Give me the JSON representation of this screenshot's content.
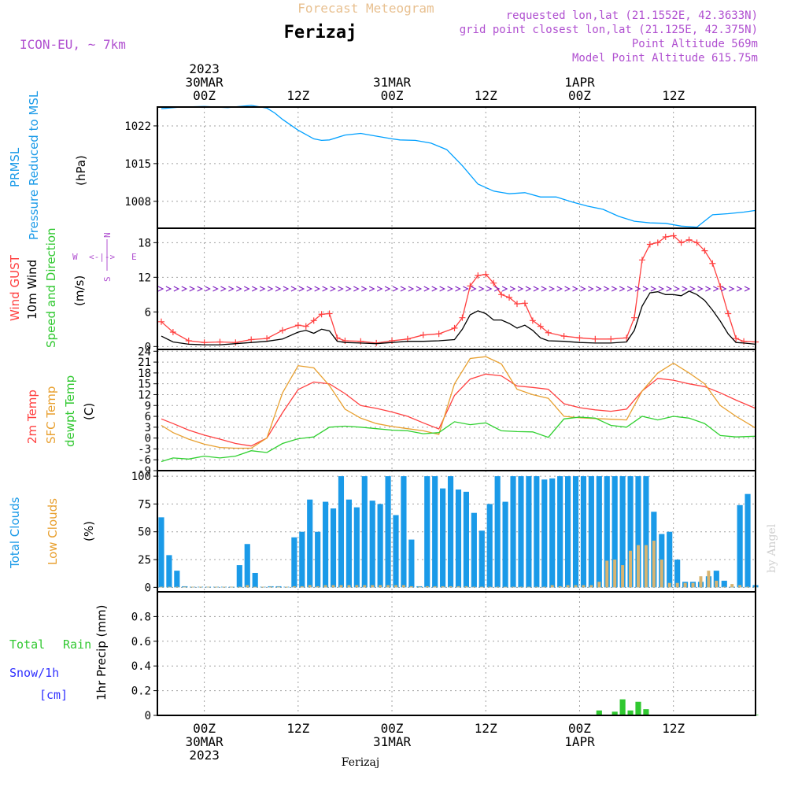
{
  "header": {
    "product": "Forecast Meteogram",
    "location": "Ferizaj",
    "model": "ICON-EU, ~ 7km",
    "requested": "requested lon,lat (21.1552E, 42.3633N)",
    "grid": "grid point closest lon,lat (21.125E, 42.375N)",
    "altitude": "Point Altitude 569m",
    "model_altitude": "Model Point Altitude 615.75m",
    "footer": "Ferizaj",
    "watermark": "by Angel"
  },
  "time_axis": {
    "top": [
      {
        "t": 0,
        "lines": [
          "2023",
          "30MAR",
          "00Z"
        ]
      },
      {
        "t": 12,
        "lines": [
          "12Z"
        ]
      },
      {
        "t": 24,
        "lines": [
          "31MAR",
          "00Z"
        ]
      },
      {
        "t": 36,
        "lines": [
          "12Z"
        ]
      },
      {
        "t": 48,
        "lines": [
          "1APR",
          "00Z"
        ]
      },
      {
        "t": 60,
        "lines": [
          "12Z"
        ]
      }
    ],
    "bottom": [
      {
        "t": 0,
        "lines": [
          "00Z",
          "30MAR",
          "2023"
        ]
      },
      {
        "t": 12,
        "lines": [
          "12Z"
        ]
      },
      {
        "t": 24,
        "lines": [
          "00Z",
          "31MAR"
        ]
      },
      {
        "t": 36,
        "lines": [
          "12Z"
        ]
      },
      {
        "t": 48,
        "lines": [
          "00Z",
          "1APR"
        ]
      },
      {
        "t": 60,
        "lines": [
          "12Z"
        ]
      }
    ]
  },
  "labels": {
    "p1": [
      "PRMSL",
      "Pressure Reduced to MSL",
      "(hPa)"
    ],
    "p2": [
      "Wind GUST",
      "10m Wind",
      "Speed and Direction",
      "(m/s)"
    ],
    "compass": {
      "n": "N",
      "s": "S",
      "w": "W",
      "e": "E",
      "we": "<-|->"
    },
    "p3": [
      "2m Temp",
      "SFC Temp",
      "dewpt Temp",
      "(C)"
    ],
    "p4": [
      "Total Clouds",
      "Low Clouds",
      "(%)"
    ],
    "p5": [
      "Total",
      "Rain",
      "Snow/1h",
      "[cm]",
      "1hr Precip (mm)"
    ]
  },
  "chart_data": [
    {
      "type": "line",
      "title": "PRMSL Pressure Reduced to MSL",
      "ylabel": "(hPa)",
      "ylim": [
        1003,
        1025.5
      ],
      "yticks": [
        1008,
        1015,
        1022
      ],
      "x": [
        -5.5,
        -3,
        0,
        3,
        6,
        8,
        9,
        10,
        12,
        14,
        15,
        16,
        18,
        20,
        22,
        24,
        25,
        27,
        29,
        31,
        33,
        35,
        37,
        39,
        41,
        43,
        45,
        47,
        49,
        51,
        53,
        55,
        57,
        59,
        61,
        63,
        65,
        67,
        69,
        70.5
      ],
      "series": [
        {
          "name": "PRMSL",
          "color": "#00a0ff",
          "values": [
            1025.2,
            1025.5,
            1025.6,
            1025.4,
            1025.8,
            1025.3,
            1024.4,
            1023.2,
            1021.2,
            1019.6,
            1019.3,
            1019.4,
            1020.3,
            1020.6,
            1020.1,
            1019.6,
            1019.4,
            1019.3,
            1018.8,
            1017.6,
            1014.6,
            1011.2,
            1009.9,
            1009.4,
            1009.6,
            1008.8,
            1008.8,
            1007.9,
            1007.1,
            1006.5,
            1005.2,
            1004.3,
            1004.0,
            1003.9,
            1003.4,
            1003.2,
            1005.5,
            1005.7,
            1006.0,
            1006.3
          ]
        }
      ]
    },
    {
      "type": "line",
      "title": "Wind GUST / 10m Wind Speed and Direction",
      "ylabel": "(m/s)",
      "ylim": [
        -0.5,
        20.5
      ],
      "yticks": [
        0,
        6,
        12,
        18
      ],
      "x": [
        -5.5,
        -4,
        -2,
        0,
        2,
        4,
        6,
        8,
        10,
        12,
        13,
        14,
        15,
        16,
        17,
        18,
        20,
        22,
        24,
        26,
        28,
        30,
        32,
        33,
        34,
        35,
        36,
        37,
        38,
        39,
        40,
        41,
        42,
        43,
        44,
        46,
        48,
        50,
        52,
        54,
        55,
        56,
        57,
        58,
        59,
        60,
        61,
        62,
        63,
        64,
        65,
        66,
        67,
        68,
        69,
        70.5
      ],
      "series": [
        {
          "name": "Wind GUST",
          "color": "#ff4040",
          "values": [
            4.3,
            2.5,
            1.0,
            0.7,
            0.8,
            0.7,
            1.2,
            1.4,
            2.8,
            3.7,
            3.5,
            4.5,
            5.6,
            5.7,
            1.5,
            1.0,
            0.9,
            0.6,
            1.0,
            1.3,
            2.0,
            2.2,
            3.2,
            5.0,
            10.5,
            12.3,
            12.5,
            11.0,
            9.0,
            8.5,
            7.4,
            7.5,
            4.5,
            3.5,
            2.4,
            1.8,
            1.5,
            1.3,
            1.3,
            1.5,
            5.0,
            15.0,
            17.7,
            18.0,
            19.0,
            19.2,
            18.0,
            18.5,
            18.0,
            16.6,
            14.4,
            10.4,
            5.7,
            1.4,
            0.9,
            0.8
          ]
        },
        {
          "name": "10m Wind",
          "color": "#000000",
          "values": [
            1.8,
            0.8,
            0.4,
            0.3,
            0.3,
            0.5,
            0.7,
            0.9,
            1.3,
            2.5,
            2.8,
            2.3,
            3.0,
            2.7,
            0.9,
            0.7,
            0.6,
            0.5,
            0.7,
            0.9,
            0.9,
            1.0,
            1.2,
            3.0,
            5.5,
            6.2,
            5.7,
            4.6,
            4.6,
            4.0,
            3.2,
            3.7,
            2.8,
            1.5,
            1.0,
            0.9,
            0.7,
            0.6,
            0.6,
            0.8,
            2.8,
            7.0,
            9.3,
            9.5,
            9.0,
            9.0,
            8.8,
            9.6,
            9.0,
            8.0,
            6.3,
            4.4,
            2.2,
            0.7,
            0.6,
            0.4
          ]
        }
      ],
      "direction_arrows_y": 10
    },
    {
      "type": "line",
      "title": "Temperature",
      "ylabel": "(C)",
      "ylim": [
        -9,
        24.5
      ],
      "yticks": [
        -9,
        -6,
        -3,
        0,
        3,
        6,
        9,
        12,
        15,
        18,
        21,
        24
      ],
      "x": [
        -5.5,
        -4,
        -2,
        0,
        2,
        4,
        6,
        8,
        10,
        12,
        14,
        16,
        18,
        20,
        22,
        24,
        26,
        28,
        30,
        32,
        34,
        36,
        38,
        40,
        42,
        44,
        46,
        48,
        50,
        52,
        54,
        56,
        58,
        60,
        62,
        64,
        66,
        68,
        70.5
      ],
      "series": [
        {
          "name": "2m Temp",
          "color": "#ff4040",
          "values": [
            5.3,
            4.0,
            2.2,
            0.8,
            -0.3,
            -1.5,
            -2.2,
            0.0,
            7.0,
            13.4,
            15.5,
            15.0,
            12.3,
            9.0,
            8.2,
            7.2,
            6.0,
            4.2,
            2.5,
            11.8,
            16.3,
            17.7,
            17.2,
            14.4,
            14.0,
            13.5,
            9.5,
            8.4,
            7.8,
            7.4,
            8.0,
            13.0,
            16.5,
            16.0,
            15.0,
            14.2,
            12.5,
            10.5,
            8.2
          ]
        },
        {
          "name": "SFC Temp",
          "color": "#e8a030",
          "values": [
            3.5,
            1.5,
            -0.3,
            -1.7,
            -2.6,
            -2.8,
            -2.8,
            0.0,
            12.5,
            20.0,
            19.4,
            14.5,
            8.0,
            5.5,
            4.0,
            3.2,
            2.6,
            2.0,
            1.0,
            15.0,
            22.0,
            22.5,
            20.5,
            13.5,
            12.0,
            11.0,
            6.0,
            5.6,
            5.4,
            5.2,
            5.0,
            13.0,
            18.0,
            20.7,
            18.0,
            15.0,
            9.0,
            6.0,
            2.8
          ]
        },
        {
          "name": "dewpt Temp",
          "color": "#30d030",
          "values": [
            -6.5,
            -5.5,
            -5.8,
            -5.0,
            -5.5,
            -5.0,
            -3.5,
            -4.0,
            -1.5,
            -0.2,
            0.3,
            3.0,
            3.3,
            3.0,
            2.6,
            2.2,
            2.0,
            1.2,
            1.5,
            4.5,
            3.7,
            4.2,
            2.0,
            1.8,
            1.7,
            0.2,
            5.3,
            5.8,
            5.5,
            3.5,
            3.0,
            6.0,
            5.0,
            6.0,
            5.5,
            4.0,
            0.7,
            0.3,
            0.5
          ]
        }
      ]
    },
    {
      "type": "bar",
      "title": "Clouds",
      "ylabel": "(%)",
      "ylim": [
        -4,
        105
      ],
      "yticks": [
        0,
        25,
        50,
        75,
        100
      ],
      "x_start": -6,
      "x_step": 1,
      "series": [
        {
          "name": "Total Clouds",
          "color": "#1a9ae8",
          "values": [
            63,
            29,
            15,
            1,
            0,
            0,
            0,
            0,
            0,
            0,
            20,
            39,
            13,
            0,
            1,
            1,
            0,
            45,
            50,
            79,
            50,
            77,
            71,
            100,
            79,
            72,
            100,
            78,
            75,
            100,
            65,
            100,
            43,
            1,
            100,
            100,
            89,
            100,
            88,
            86,
            67,
            51,
            75,
            100,
            77,
            100,
            100,
            100,
            100,
            97,
            98,
            100,
            100,
            100,
            100,
            100,
            100,
            100,
            100,
            100,
            100,
            100,
            100,
            68,
            48,
            50,
            25,
            5,
            5,
            5,
            10,
            15,
            6,
            0,
            74,
            84,
            2,
            76,
            82,
            73,
            93,
            68,
            65,
            34
          ]
        },
        {
          "name": "Low Clouds",
          "color": "#d8b470",
          "values": [
            0,
            0,
            0,
            0,
            0,
            0,
            0,
            0,
            0,
            0,
            0,
            2,
            0,
            0,
            0,
            0,
            0,
            1,
            1,
            2,
            1,
            2,
            2,
            2,
            2,
            2,
            2,
            2,
            2,
            2,
            2,
            2,
            1,
            0,
            1,
            1,
            1,
            1,
            1,
            1,
            0,
            0,
            0,
            0,
            0,
            0,
            0,
            0,
            0,
            0,
            2,
            1,
            2,
            2,
            2,
            2,
            5,
            24,
            25,
            20,
            33,
            38,
            38,
            42,
            25,
            4,
            4,
            4,
            4,
            10,
            15,
            6,
            0,
            3,
            2,
            0,
            0,
            0,
            0,
            0,
            0,
            0,
            0,
            0
          ]
        }
      ]
    },
    {
      "type": "bar",
      "title": "1hr Precip",
      "ylabel": "1hr Precip (mm)",
      "ylim": [
        0,
        1.0
      ],
      "yticks": [
        0,
        0.2,
        0.4,
        0.6,
        0.8
      ],
      "x_start": -6,
      "x_step": 1,
      "series": [
        {
          "name": "Total Rain",
          "color": "#30c830",
          "values": [
            0,
            0,
            0,
            0,
            0,
            0,
            0,
            0,
            0,
            0,
            0,
            0,
            0,
            0,
            0,
            0,
            0,
            0,
            0,
            0,
            0,
            0,
            0,
            0,
            0,
            0,
            0,
            0,
            0,
            0,
            0,
            0,
            0,
            0,
            0,
            0,
            0,
            0,
            0,
            0,
            0,
            0,
            0,
            0,
            0,
            0,
            0,
            0,
            0,
            0,
            0,
            0,
            0,
            0,
            0,
            0,
            0.04,
            0.0,
            0.03,
            0.13,
            0.04,
            0.11,
            0.05,
            0,
            0,
            0,
            0,
            0,
            0,
            0,
            0,
            0,
            0,
            0,
            0,
            0,
            0,
            0,
            0,
            0,
            0,
            0,
            0,
            0
          ]
        }
      ]
    }
  ],
  "colors": {
    "frame": "#000000",
    "grid": "#a0a0a0",
    "title": "#e8c090",
    "info": "#b050d0",
    "wind_dir_left": "#8020c0",
    "cyan_label": "#1a9ae8",
    "snow_label": "#3030ff"
  }
}
